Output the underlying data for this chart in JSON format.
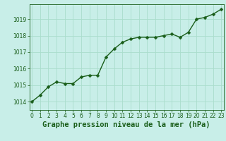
{
  "x": [
    0,
    1,
    2,
    3,
    4,
    5,
    6,
    7,
    8,
    9,
    10,
    11,
    12,
    13,
    14,
    15,
    16,
    17,
    18,
    19,
    20,
    21,
    22,
    23
  ],
  "y": [
    1014.0,
    1014.4,
    1014.9,
    1015.2,
    1015.1,
    1015.1,
    1015.5,
    1015.6,
    1015.6,
    1016.7,
    1017.2,
    1017.6,
    1017.8,
    1017.9,
    1017.9,
    1017.9,
    1018.0,
    1018.1,
    1017.9,
    1018.2,
    1019.0,
    1019.1,
    1019.3,
    1019.6
  ],
  "line_color": "#1a5e1a",
  "marker": "D",
  "marker_size": 2.5,
  "bg_color": "#c8eee8",
  "grid_color": "#aaddcc",
  "title": "Graphe pression niveau de la mer (hPa)",
  "title_color": "#1a5e1a",
  "title_fontsize": 7.5,
  "ylim": [
    1013.5,
    1019.9
  ],
  "xlim": [
    -0.3,
    23.3
  ],
  "yticks": [
    1014,
    1015,
    1016,
    1017,
    1018,
    1019
  ],
  "xtick_labels": [
    "0",
    "1",
    "2",
    "3",
    "4",
    "5",
    "6",
    "7",
    "8",
    "9",
    "10",
    "11",
    "12",
    "13",
    "14",
    "15",
    "16",
    "17",
    "18",
    "19",
    "20",
    "21",
    "22",
    "23"
  ],
  "tick_color": "#1a5e1a",
  "tick_fontsize": 5.5,
  "spine_color": "#1a5e1a",
  "line_width": 1.0
}
